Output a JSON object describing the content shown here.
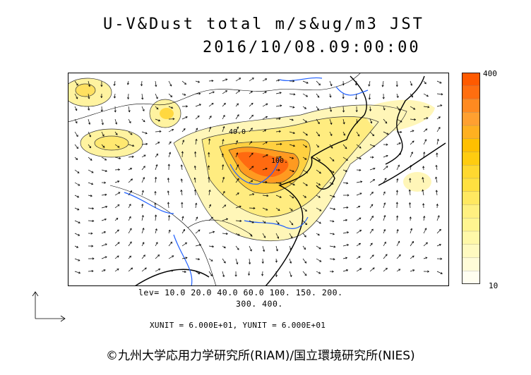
{
  "title": {
    "line1": "U-V&Dust total m/s&ug/m3 JST",
    "line2": "2016/10/08.09:00:00"
  },
  "colorbar": {
    "max_label": "400",
    "min_label": "10",
    "colors": [
      "#ff5a00",
      "#ff6e10",
      "#ff8a20",
      "#ffa030",
      "#ffb020",
      "#ffbf00",
      "#ffcc10",
      "#ffd830",
      "#ffe040",
      "#ffe860",
      "#fff080",
      "#fff590",
      "#fff8a8",
      "#fffac0",
      "#fffcd8",
      "#fffef0"
    ]
  },
  "contour_labels": {
    "label_40": "40.0",
    "label_100": "100."
  },
  "levels": {
    "line1": "lev= 10.0 20.0 40.0 60.0 100. 150. 200.",
    "line2": "300. 400."
  },
  "units_text": "XUNIT = 6.000E+01, YUNIT = 6.000E+01",
  "copyright": "©九州大学応用力学研究所(RIAM)/国立環境研究所(NIES)"
}
